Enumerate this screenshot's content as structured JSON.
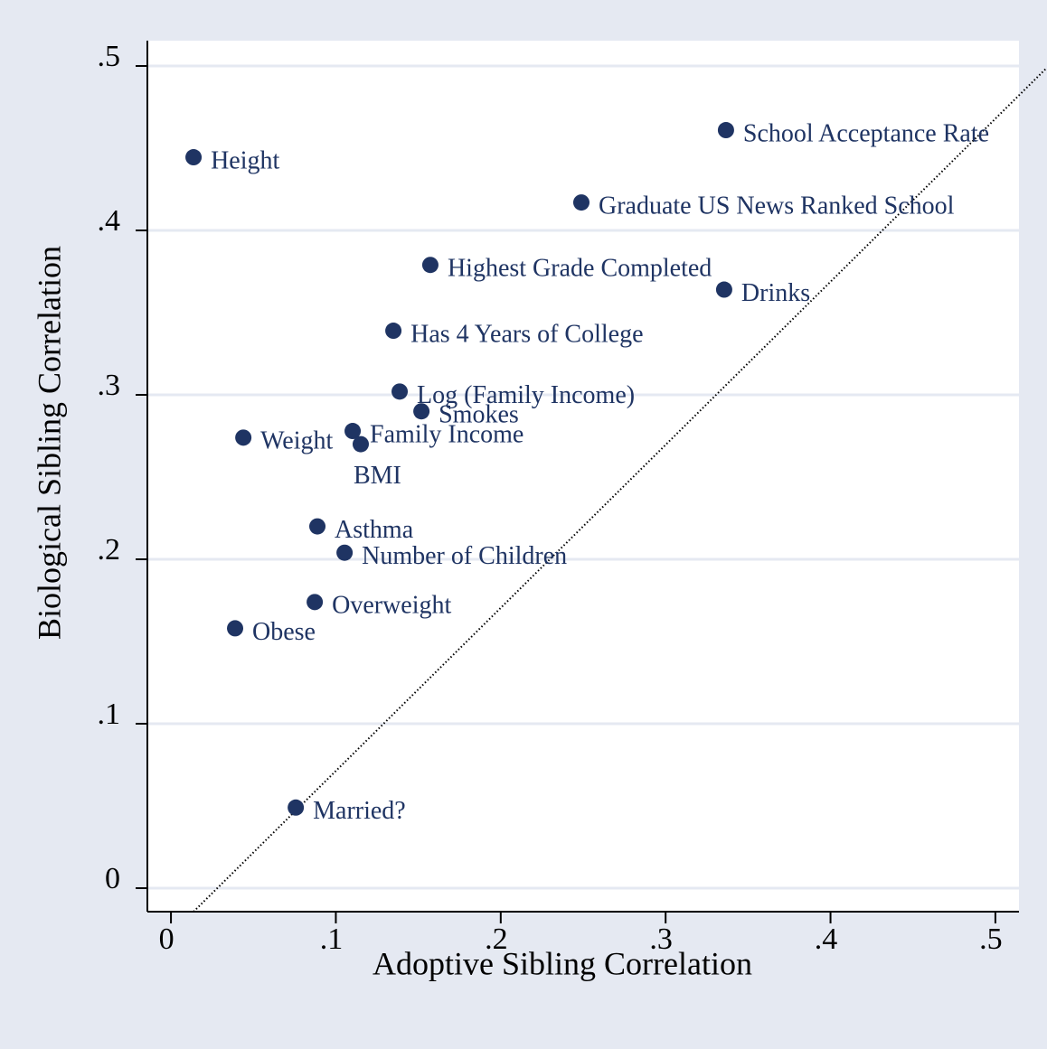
{
  "chart_data": {
    "type": "scatter",
    "x_label": "Adoptive Sibling Correlation",
    "y_label": "Biological Sibling Correlation",
    "series": [
      {
        "name": "Sibling correlations",
        "color": "#1f3463",
        "labels": [
          "Height",
          "School Acceptance Rate",
          "Graduate US News Ranked School",
          "Highest Grade Completed",
          "Drinks",
          "Has 4 Years of College",
          "Log (Family Income)",
          "Smokes",
          "Weight",
          "Family Income",
          "BMI",
          "Asthma",
          "Number of Children",
          "Overweight",
          "Obese",
          "Married?"
        ],
        "label_positions": [
          "right",
          "right",
          "right",
          "right",
          "right",
          "right",
          "right",
          "right",
          "right",
          "right",
          "below",
          "right",
          "right",
          "right",
          "right",
          "right"
        ],
        "x": [
          0.0137,
          0.3366,
          0.2489,
          0.1573,
          0.3355,
          0.1349,
          0.1387,
          0.1519,
          0.0439,
          0.1102,
          0.1151,
          0.0888,
          0.1053,
          0.0872,
          0.0389,
          0.0757
        ],
        "values": [
          0.4445,
          0.461,
          0.417,
          0.379,
          0.364,
          0.339,
          0.302,
          0.29,
          0.274,
          0.278,
          0.27,
          0.22,
          0.204,
          0.174,
          0.158,
          0.049
        ]
      }
    ],
    "reference_line": {
      "x": [
        0.0137,
        0.5312
      ],
      "y": [
        -0.0143,
        0.4989
      ]
    },
    "xlim": [
      -0.0143,
      0.5143
    ],
    "ylim": [
      -0.0143,
      0.5154
    ],
    "xticks": [
      0,
      {
        "value": 0.1,
        "label": ".1"
      },
      {
        "value": 0.2,
        "label": ".2"
      },
      {
        "value": 0.3,
        "label": ".3"
      },
      {
        "value": 0.4,
        "label": ".4"
      },
      {
        "value": 0.5,
        "label": ".5"
      }
    ],
    "yticks": [
      0,
      {
        "value": 0.1,
        "label": ".1"
      },
      {
        "value": 0.2,
        "label": ".2"
      },
      {
        "value": 0.3,
        "label": ".3"
      },
      {
        "value": 0.4,
        "label": ".4"
      },
      {
        "value": 0.5,
        "label": ".5"
      }
    ],
    "grid": true
  }
}
